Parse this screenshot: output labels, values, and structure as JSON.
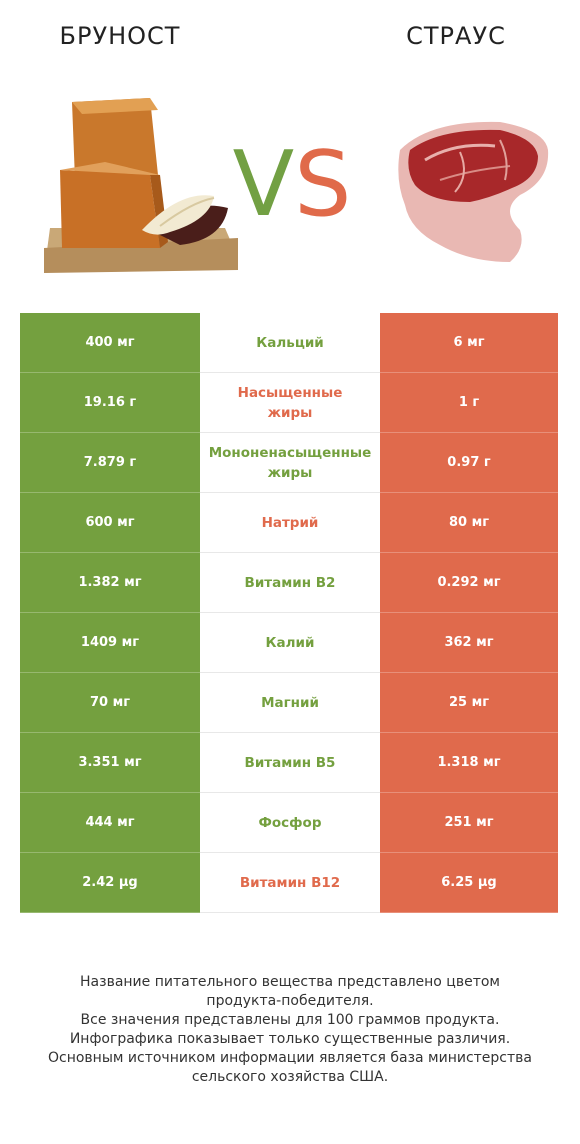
{
  "left_product": {
    "name": "БРУНОСТ"
  },
  "right_product": {
    "name": "СТРАУС"
  },
  "vs": {
    "v": "V",
    "s": "S"
  },
  "colors": {
    "left": "#74a03f",
    "right": "#e06a4c"
  },
  "chart_data": {
    "type": "table",
    "columns": [
      "БРУНОСТ",
      "",
      "СТРАУС"
    ],
    "rows": [
      {
        "nutrient": "Кальций",
        "left": "400 мг",
        "right": "6 мг",
        "winner": "left"
      },
      {
        "nutrient": "Насыщенные жиры",
        "left": "19.16 г",
        "right": "1 г",
        "winner": "right"
      },
      {
        "nutrient": "Мононенасыщенные жиры",
        "left": "7.879 г",
        "right": "0.97 г",
        "winner": "left"
      },
      {
        "nutrient": "Натрий",
        "left": "600 мг",
        "right": "80 мг",
        "winner": "right"
      },
      {
        "nutrient": "Витамин B2",
        "left": "1.382 мг",
        "right": "0.292 мг",
        "winner": "left"
      },
      {
        "nutrient": "Калий",
        "left": "1409 мг",
        "right": "362 мг",
        "winner": "left"
      },
      {
        "nutrient": "Магний",
        "left": "70 мг",
        "right": "25 мг",
        "winner": "left"
      },
      {
        "nutrient": "Витамин B5",
        "left": "3.351 мг",
        "right": "1.318 мг",
        "winner": "left"
      },
      {
        "nutrient": "Фосфор",
        "left": "444 мг",
        "right": "251 мг",
        "winner": "left"
      },
      {
        "nutrient": "Витамин B12",
        "left": "2.42 µg",
        "right": "6.25 µg",
        "winner": "right"
      }
    ]
  },
  "footer": {
    "lines": [
      "Название питательного вещества представлено цветом",
      "продукта-победителя.",
      "Все значения представлены для 100 граммов продукта.",
      "Инфографика показывает только существенные различия.",
      "Основным источником информации является база министерства",
      "сельского хозяйства США."
    ]
  }
}
